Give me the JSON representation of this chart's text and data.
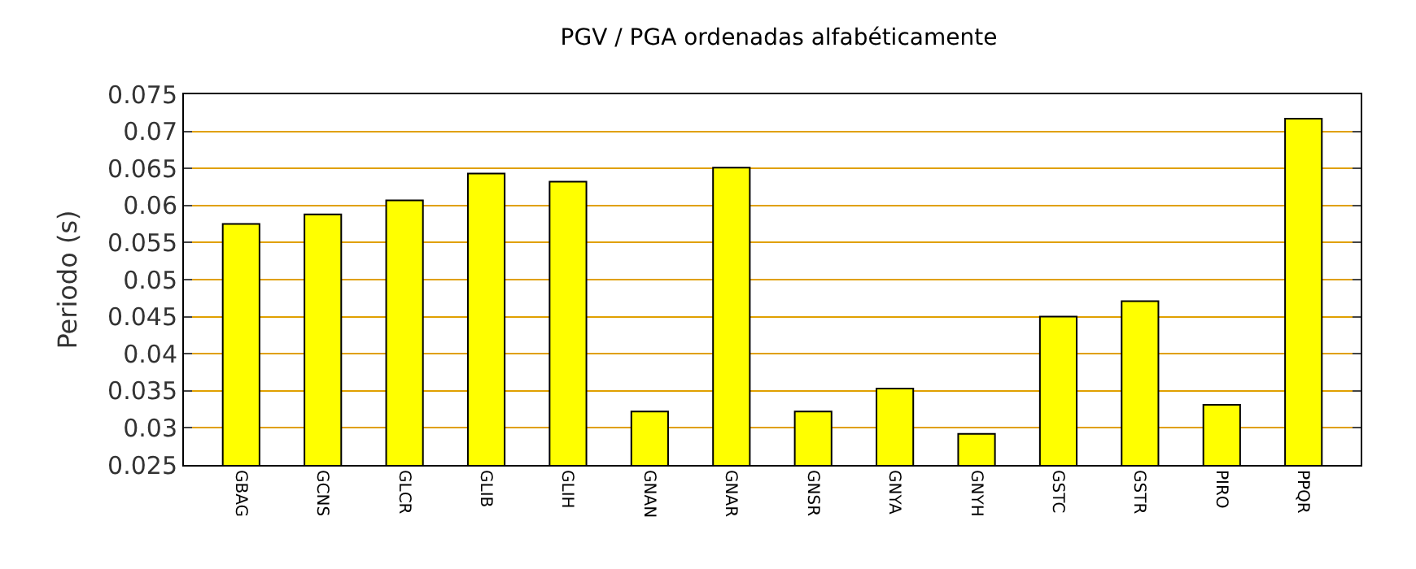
{
  "chart_data": {
    "type": "bar",
    "title": "PGV / PGA ordenadas alfabéticamente",
    "ylabel": "Periodo (s)",
    "categories": [
      "GBAG",
      "GCNS",
      "GLCR",
      "GLIB",
      "GLIH",
      "GNAN",
      "GNAR",
      "GNSR",
      "GNYA",
      "GNYH",
      "GSTC",
      "GSTR",
      "PIRO",
      "PPQR"
    ],
    "values": [
      0.0575,
      0.0588,
      0.0607,
      0.0643,
      0.0632,
      0.0322,
      0.0651,
      0.0322,
      0.0353,
      0.0292,
      0.045,
      0.0471,
      0.0331,
      0.0717
    ],
    "color": "#ffff00",
    "ylim": [
      0.025,
      0.075
    ],
    "yticks": [
      0.025,
      0.03,
      0.035,
      0.04,
      0.045,
      0.05,
      0.055,
      0.06,
      0.065,
      0.07,
      0.075
    ],
    "grid": "y"
  }
}
